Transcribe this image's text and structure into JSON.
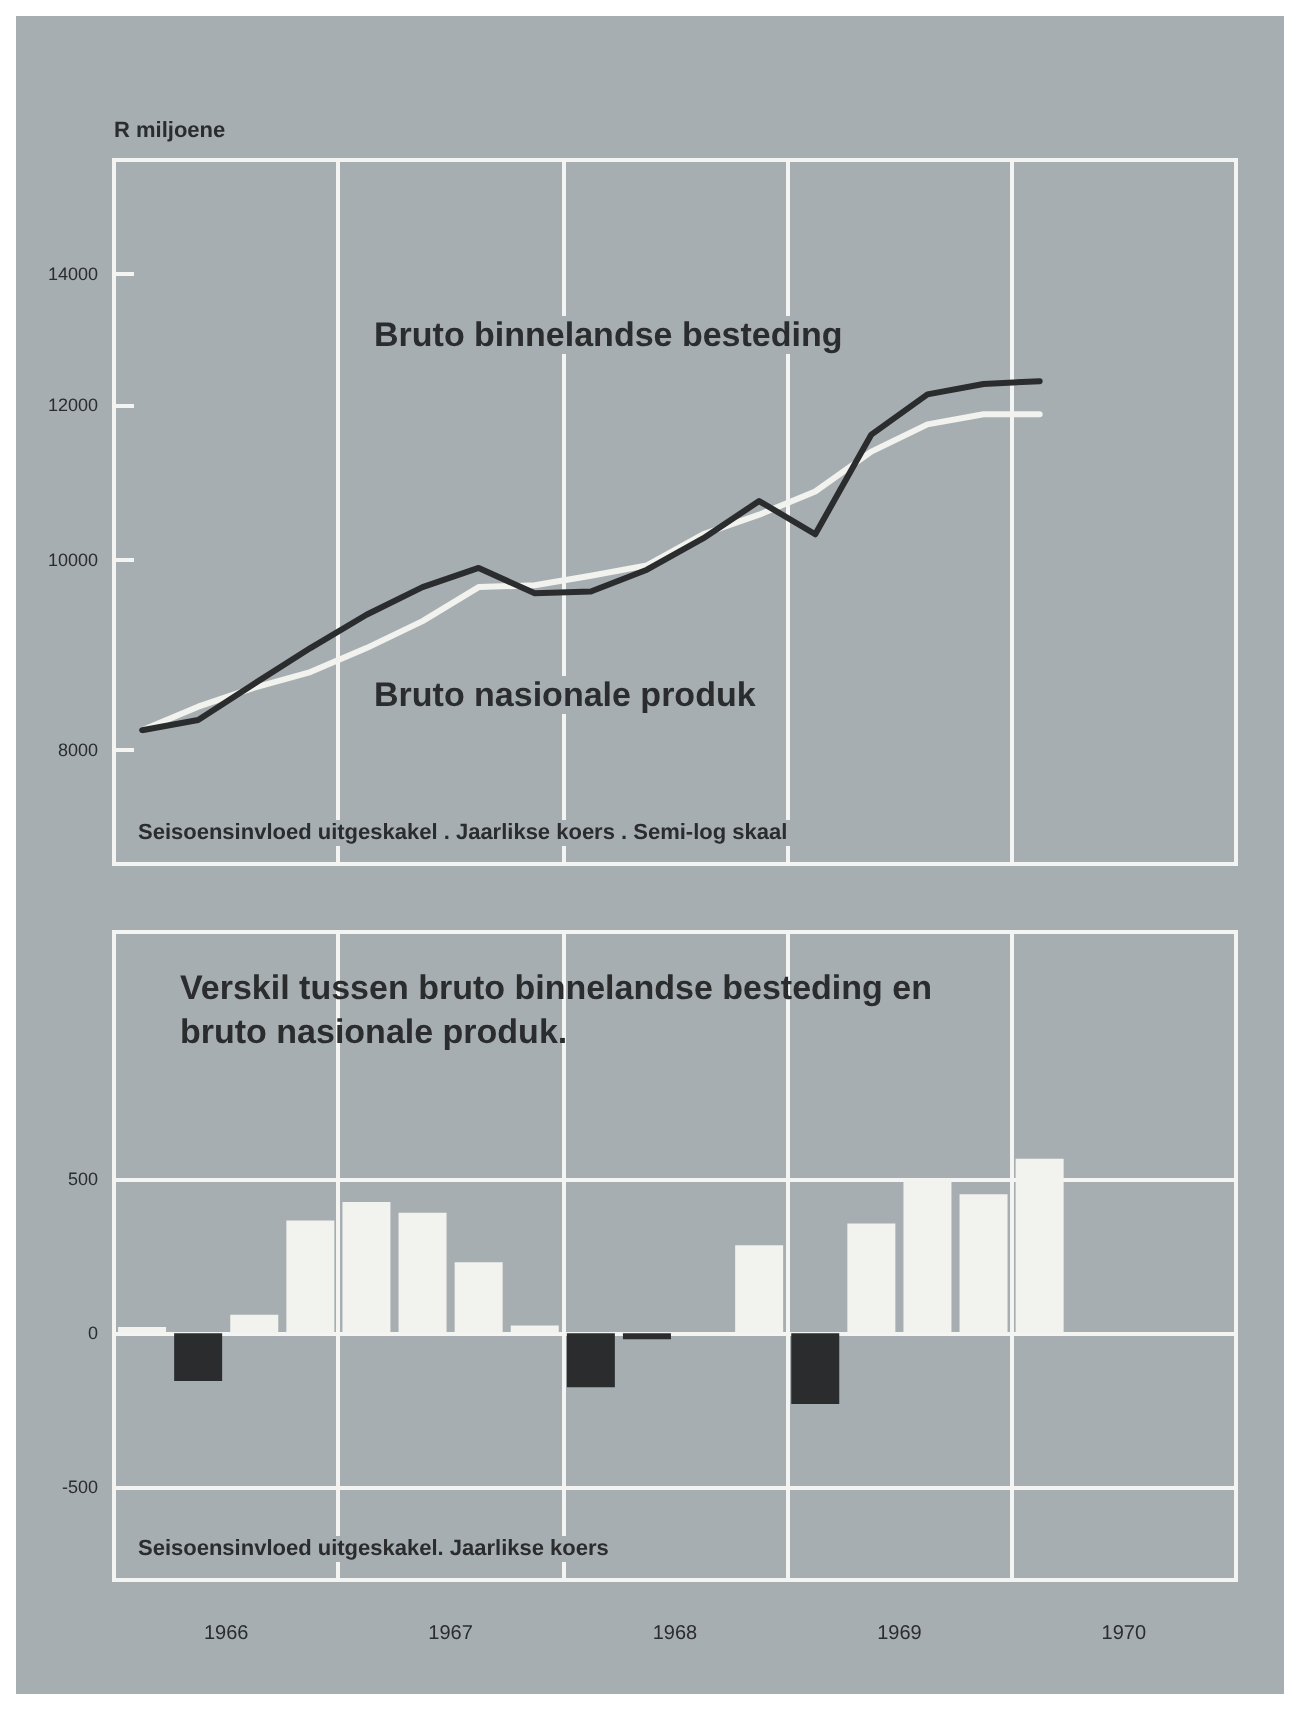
{
  "chart_data": [
    {
      "type": "line",
      "ylabel": "R miljoene",
      "x": [
        1966.125,
        1966.375,
        1966.625,
        1966.875,
        1967.125,
        1967.375,
        1967.625,
        1967.875,
        1968.125,
        1968.375,
        1968.625,
        1968.875,
        1969.125,
        1969.375,
        1969.625,
        1969.875,
        1970.125
      ],
      "series": [
        {
          "name": "Bruto binnelandse besteding",
          "color": "#2a2c2e",
          "values": [
            8190,
            8290,
            8650,
            9020,
            9380,
            9690,
            9910,
            9620,
            9640,
            9890,
            10260,
            10720,
            10310,
            11590,
            12150,
            12300,
            12340
          ]
        },
        {
          "name": "Bruto nasionale produk",
          "color": "#f2f2ef",
          "values": [
            8190,
            8420,
            8610,
            8770,
            9020,
            9310,
            9690,
            9710,
            9820,
            9940,
            10310,
            10550,
            10840,
            11360,
            11730,
            11870,
            11870
          ]
        }
      ],
      "xlim": [
        1966,
        1971
      ],
      "xticks": [
        {
          "value": 1966,
          "label": null
        },
        {
          "value": 1967,
          "label": null
        },
        {
          "value": 1968,
          "label": null
        },
        {
          "value": 1969,
          "label": null
        },
        {
          "value": 1970,
          "label": null
        },
        {
          "value": 1971,
          "label": null
        }
      ],
      "ylim": [
        7000,
        16000
      ],
      "yticks": [
        8000,
        10000,
        12000,
        14000
      ],
      "log": true,
      "grid": "x",
      "tick_labels": "y",
      "marker": "none",
      "legend": false,
      "annotations": [
        "Seisoensinvloed uitgeskakel . Jaarlikse koers . Semi-log skaal"
      ]
    },
    {
      "type": "bar",
      "title": "Verskil tussen bruto binnelandse besteding en bruto nasionale produk.",
      "x": [
        1966.125,
        1966.375,
        1966.625,
        1966.875,
        1967.125,
        1967.375,
        1967.625,
        1967.875,
        1968.125,
        1968.375,
        1968.625,
        1968.875,
        1969.125,
        1969.375,
        1969.625,
        1969.875,
        1970.125
      ],
      "values": [
        20,
        -155,
        60,
        365,
        425,
        390,
        230,
        25,
        -175,
        -20,
        0,
        285,
        -230,
        355,
        500,
        450,
        565
      ],
      "colors": [
        "#f2f2ef",
        "#2a2c2e",
        "#f2f2ef",
        "#f2f2ef",
        "#f2f2ef",
        "#f2f2ef",
        "#f2f2ef",
        "#f2f2ef",
        "#2a2c2e",
        "#2a2c2e",
        "#f2f2ef",
        "#f2f2ef",
        "#2a2c2e",
        "#f2f2ef",
        "#f2f2ef",
        "#f2f2ef",
        "#f2f2ef"
      ],
      "xlim": [
        1966,
        1971
      ],
      "xticks": [
        {
          "value": 1966,
          "label": null
        },
        {
          "value": 1967,
          "label": null
        },
        {
          "value": 1968,
          "label": null
        },
        {
          "value": 1969,
          "label": null
        },
        {
          "value": 1970,
          "label": null
        },
        {
          "value": 1971,
          "label": null
        },
        {
          "value": 1966.5,
          "label": "1966"
        },
        {
          "value": 1967.5,
          "label": "1967"
        },
        {
          "value": 1968.5,
          "label": "1968"
        },
        {
          "value": 1969.5,
          "label": "1969"
        },
        {
          "value": 1970.5,
          "label": "1970"
        }
      ],
      "ylim": [
        -800,
        1300
      ],
      "yticks": [
        -500,
        0,
        500
      ],
      "grid": true,
      "annotations": [
        "Seisoensinvloed uitgeskakel. Jaarlikse koers"
      ]
    }
  ]
}
